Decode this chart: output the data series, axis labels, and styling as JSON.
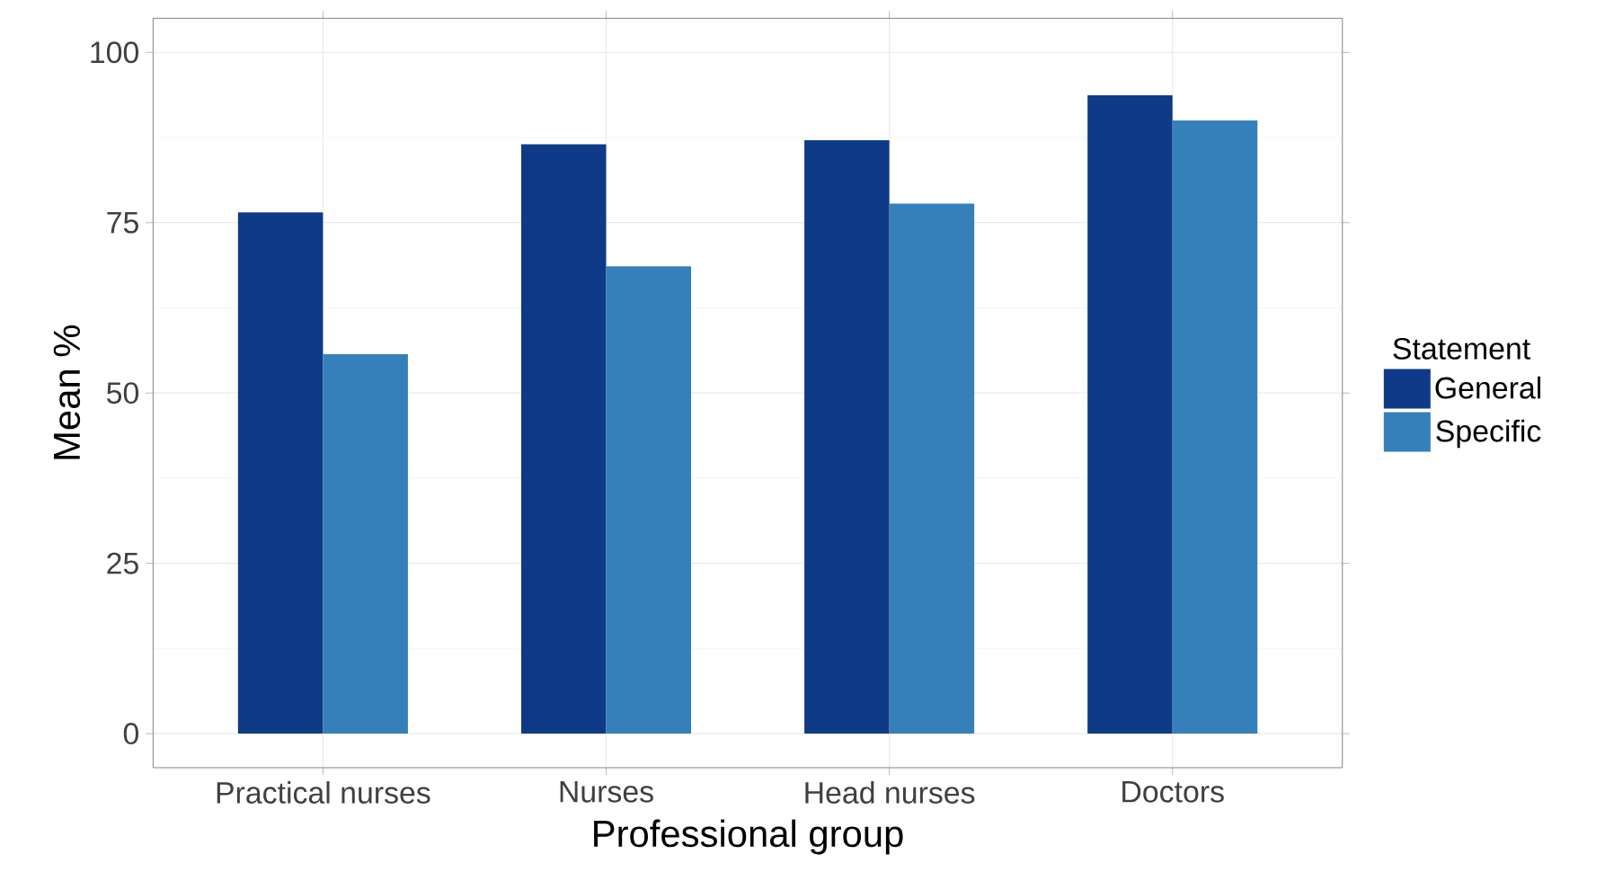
{
  "chart_data": {
    "type": "bar",
    "xlabel": "Professional group",
    "ylabel": "Mean %",
    "legend_title": "Statement",
    "categories": [
      "Practical nurses",
      "Nurses",
      "Head nurses",
      "Doctors"
    ],
    "series": [
      {
        "name": "General",
        "color": "#0f3a87",
        "values": [
          76.5,
          86.5,
          87.1,
          93.7
        ]
      },
      {
        "name": "Specific",
        "color": "#3580bb",
        "values": [
          55.7,
          68.6,
          77.8,
          90.0
        ]
      }
    ],
    "ylim": [
      -5,
      105
    ],
    "yticks": [
      0,
      25,
      50,
      75,
      100
    ],
    "grid": true,
    "legend": "right"
  }
}
